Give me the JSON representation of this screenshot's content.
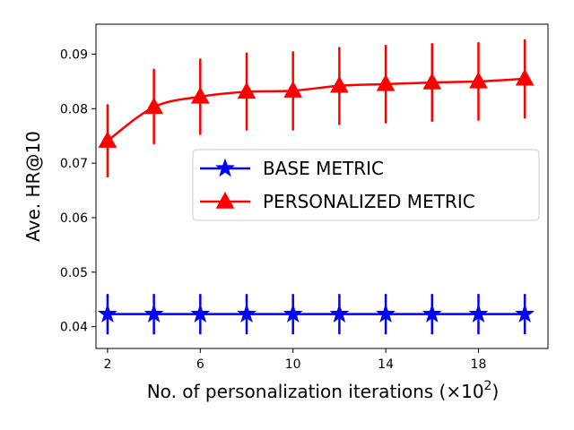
{
  "chart_data": {
    "type": "line",
    "title": "",
    "xlabel": "No. of personalization iterations (×10",
    "xlabel_sup": "2",
    "xlabel_close": ")",
    "ylabel": "Ave. HR@10",
    "xlim": [
      1.5,
      21.0
    ],
    "ylim": [
      0.036,
      0.0955
    ],
    "xticks": [
      2,
      6,
      10,
      14,
      18
    ],
    "xtick_labels": [
      "2",
      "6",
      "10",
      "14",
      "18"
    ],
    "yticks": [
      0.04,
      0.05,
      0.06,
      0.07,
      0.08,
      0.09
    ],
    "ytick_labels": [
      "0.04",
      "0.05",
      "0.06",
      "0.07",
      "0.08",
      "0.09"
    ],
    "grid": false,
    "legend_position": "center-right",
    "x": [
      2,
      4,
      6,
      8,
      10,
      12,
      14,
      16,
      18,
      20
    ],
    "series": [
      {
        "name": "BASE METRIC",
        "color": "#0000ff",
        "marker": "star",
        "values": [
          0.0423,
          0.0423,
          0.0423,
          0.0423,
          0.0423,
          0.0423,
          0.0423,
          0.0423,
          0.0423,
          0.0423
        ],
        "err_low": [
          0.0386,
          0.0386,
          0.0386,
          0.0386,
          0.0386,
          0.0386,
          0.0386,
          0.0386,
          0.0386,
          0.0386
        ],
        "err_high": [
          0.046,
          0.046,
          0.046,
          0.046,
          0.046,
          0.046,
          0.046,
          0.046,
          0.046,
          0.046
        ]
      },
      {
        "name": "PERSONALIZED METRIC",
        "color": "#ff0000",
        "marker": "triangle",
        "values": [
          0.0741,
          0.0803,
          0.0822,
          0.0831,
          0.0833,
          0.0842,
          0.0845,
          0.0848,
          0.085,
          0.0855
        ],
        "err_low": [
          0.0674,
          0.0735,
          0.0752,
          0.076,
          0.076,
          0.077,
          0.0773,
          0.0776,
          0.0778,
          0.0782
        ],
        "err_high": [
          0.0808,
          0.0873,
          0.0892,
          0.0903,
          0.0905,
          0.0913,
          0.0917,
          0.092,
          0.0922,
          0.0927
        ]
      }
    ]
  }
}
